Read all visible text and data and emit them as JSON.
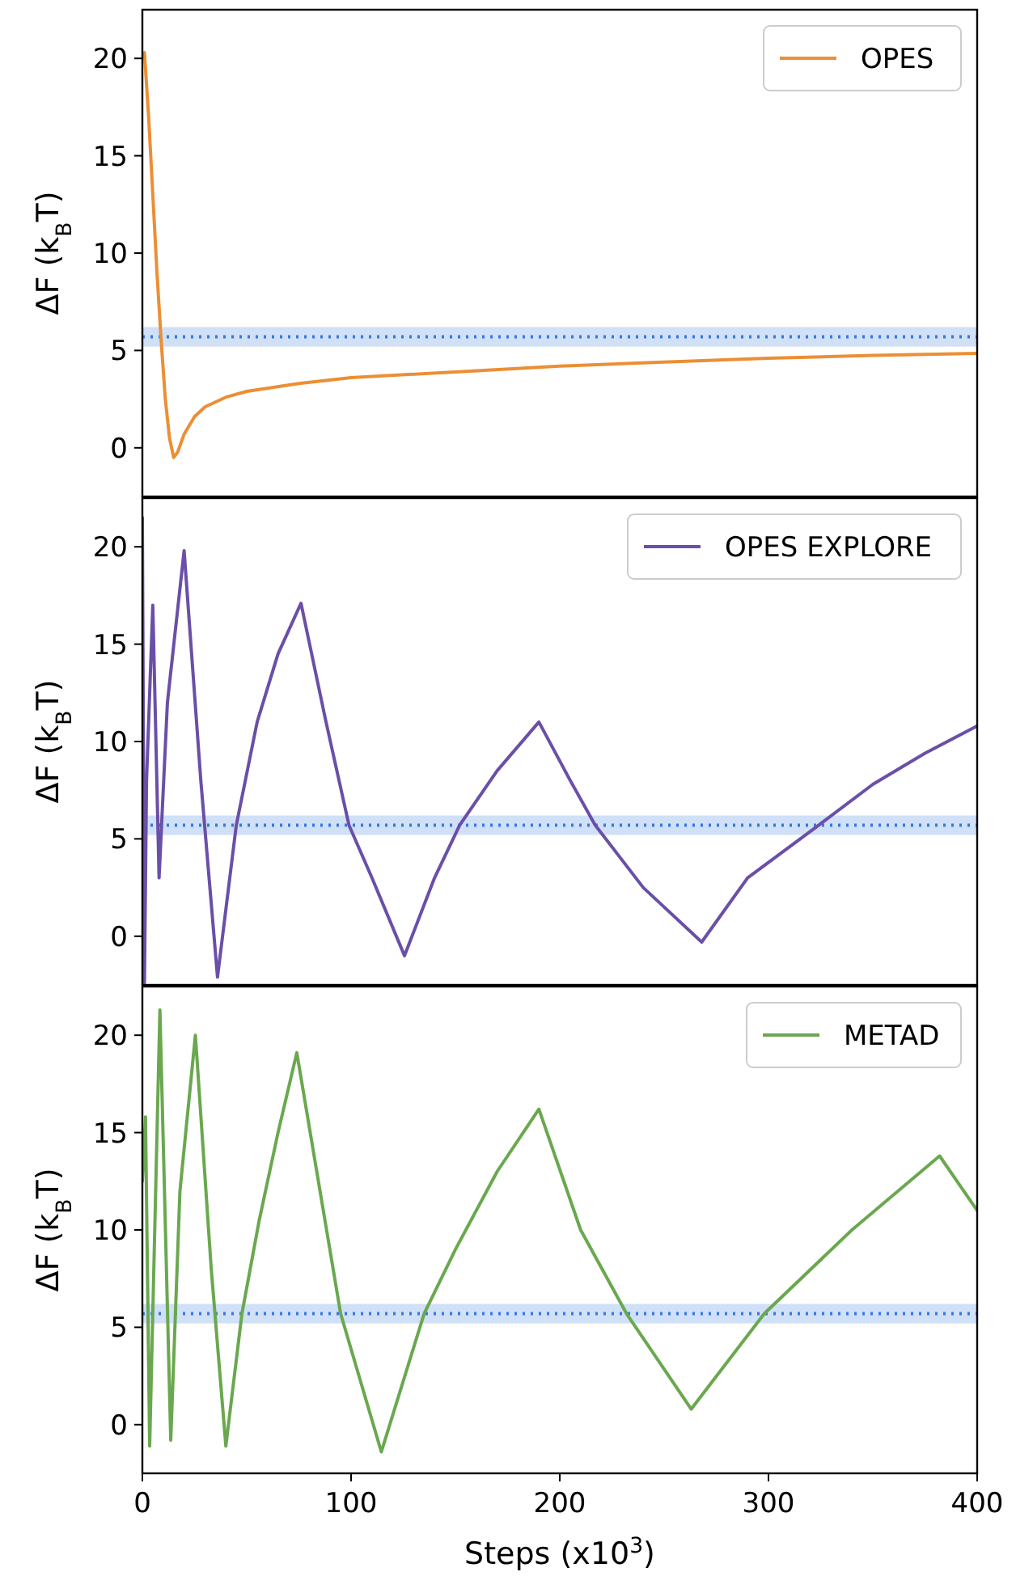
{
  "chart_data": [
    {
      "type": "line",
      "ylabel": "ΔF (k$_{B}$T)",
      "xlim": [
        0,
        400
      ],
      "ylim": [
        -2.5,
        22.5
      ],
      "yticks": [
        0,
        5,
        10,
        15,
        20
      ],
      "tick_labels": "y",
      "legend": "top right",
      "grid": false,
      "series": [
        {
          "name": "OPES",
          "color": "#eb8f34",
          "x": [
            1,
            3,
            5,
            7,
            9,
            11,
            13,
            15,
            17,
            20,
            25,
            30,
            40,
            50,
            75,
            100,
            150,
            200,
            250,
            300,
            350,
            400
          ],
          "values": [
            20.3,
            17,
            13,
            9,
            5.5,
            2.5,
            0.5,
            -0.5,
            -0.2,
            0.7,
            1.6,
            2.1,
            2.6,
            2.9,
            3.3,
            3.6,
            3.9,
            4.2,
            4.4,
            4.6,
            4.75,
            4.85
          ]
        }
      ],
      "ref_lines": [
        {
          "axis": "y",
          "value": 5.7,
          "color": "#3a78e0",
          "line_style": "dotted"
        }
      ],
      "bands": [
        {
          "axis": "y",
          "from": 5.2,
          "to": 6.2,
          "color": "#cfe0f7"
        }
      ]
    },
    {
      "type": "line",
      "ylabel": "ΔF (k$_{B}$T)",
      "xlim": [
        0,
        400
      ],
      "ylim": [
        -2.5,
        22.5
      ],
      "yticks": [
        0,
        5,
        10,
        15,
        20
      ],
      "tick_labels": "y",
      "legend": "top right",
      "grid": false,
      "series": [
        {
          "name": "OPES EXPLORE",
          "color": "#6a4fa8",
          "x": [
            0,
            1,
            2,
            5,
            8,
            12,
            20,
            28,
            36,
            45,
            55,
            65,
            76,
            88,
            99,
            110,
            125.6,
            140,
            152,
            170,
            190,
            205,
            217,
            240,
            268,
            290,
            324,
            350,
            375,
            400
          ],
          "values": [
            21.5,
            -2.4,
            8,
            17,
            3,
            12,
            19.8,
            8,
            -2.1,
            5.7,
            11,
            14.5,
            17.1,
            11,
            5.7,
            3,
            -1,
            3,
            5.7,
            8.5,
            11,
            8,
            5.7,
            2.5,
            -0.3,
            3,
            5.7,
            7.8,
            9.4,
            10.8
          ]
        }
      ],
      "ref_lines": [
        {
          "axis": "y",
          "value": 5.7,
          "color": "#3a78e0",
          "line_style": "dotted"
        }
      ],
      "bands": [
        {
          "axis": "y",
          "from": 5.2,
          "to": 6.2,
          "color": "#cfe0f7"
        }
      ]
    },
    {
      "type": "line",
      "xlabel": "Steps (x10$^{3}$)",
      "ylabel": "ΔF (k$_{B}$T)",
      "xlim": [
        0,
        400
      ],
      "ylim": [
        -2.5,
        22.5
      ],
      "xticks": [
        0,
        100,
        200,
        300,
        400
      ],
      "yticks": [
        0,
        5,
        10,
        15,
        20
      ],
      "legend": "top right",
      "grid": false,
      "series": [
        {
          "name": "METAD",
          "color": "#6aa84f",
          "x": [
            0,
            1.5,
            3.5,
            8.4,
            13.6,
            18,
            25.4,
            33,
            40,
            47.7,
            56,
            65,
            74,
            95,
            114.5,
            135,
            150,
            170,
            190,
            210,
            232,
            263,
            298,
            340,
            382,
            400
          ],
          "values": [
            12.5,
            15.8,
            -1.1,
            21.3,
            -0.8,
            12,
            20,
            8,
            -1.1,
            5.7,
            10.5,
            15,
            19.1,
            5.7,
            -1.4,
            5.7,
            9,
            13,
            16.2,
            10,
            5.7,
            0.8,
            5.7,
            10,
            13.8,
            11
          ]
        }
      ],
      "ref_lines": [
        {
          "axis": "y",
          "value": 5.7,
          "color": "#3a78e0",
          "line_style": "dotted"
        }
      ],
      "bands": [
        {
          "axis": "y",
          "from": 5.2,
          "to": 6.2,
          "color": "#cfe0f7"
        }
      ]
    }
  ]
}
